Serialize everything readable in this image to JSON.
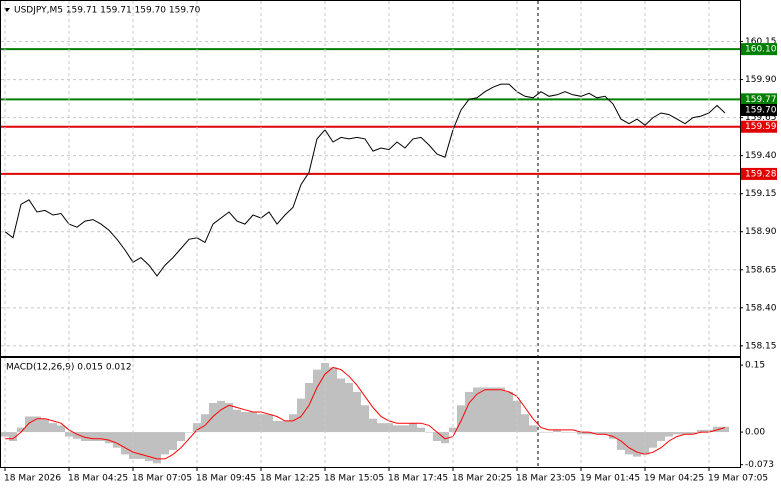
{
  "chart_data": [
    {
      "type": "line",
      "title": "USDJPY,M5  159.71 159.71 159.70 159.70",
      "color": "#000000",
      "ylim": [
        158.09,
        160.39
      ],
      "yticks": [
        160.15,
        {
          "value": 159.9,
          "label": "159.90"
        },
        159.65,
        {
          "value": 159.4,
          "label": "159.40"
        },
        159.15,
        {
          "value": 158.9,
          "label": "158.90"
        },
        158.65,
        {
          "value": 158.4,
          "label": "158.40"
        },
        158.15
      ],
      "grid": true,
      "levels": [
        {
          "value": 160.1,
          "label": "160.10",
          "color": "#008000"
        },
        {
          "value": 159.77,
          "label": "159.77",
          "color": "#008000"
        },
        {
          "value": 159.59,
          "label": "159.59",
          "color": "#e00000"
        },
        {
          "value": 159.28,
          "label": "159.28",
          "color": "#e00000"
        }
      ],
      "last_price": {
        "value": 159.7,
        "label": "159.70"
      },
      "values": [
        158.9,
        158.86,
        159.08,
        159.11,
        159.03,
        159.04,
        159.01,
        159.02,
        158.95,
        158.93,
        158.97,
        158.98,
        158.95,
        158.91,
        158.85,
        158.78,
        158.7,
        158.73,
        158.68,
        158.61,
        158.68,
        158.73,
        158.79,
        158.85,
        158.86,
        158.83,
        158.95,
        158.99,
        159.03,
        158.97,
        158.95,
        159.01,
        158.99,
        159.03,
        158.95,
        159.01,
        159.06,
        159.21,
        159.29,
        159.51,
        159.57,
        159.49,
        159.52,
        159.51,
        159.52,
        159.51,
        159.43,
        159.45,
        159.44,
        159.49,
        159.45,
        159.51,
        159.52,
        159.47,
        159.41,
        159.39,
        159.57,
        159.7,
        159.77,
        159.78,
        159.82,
        159.85,
        159.87,
        159.87,
        159.82,
        159.79,
        159.78,
        159.82,
        159.79,
        159.8,
        159.82,
        159.8,
        159.79,
        159.81,
        159.78,
        159.79,
        159.74,
        159.64,
        159.61,
        159.64,
        159.6,
        159.65,
        159.68,
        159.67,
        159.64,
        159.61,
        159.65,
        159.66,
        159.68,
        159.73,
        159.68
      ]
    },
    {
      "type": "bar",
      "title": "MACD(12,26,9) 0.015 0.012",
      "ylim": [
        -0.076,
        0.166
      ],
      "yticks": [
        0.15,
        {
          "value": 0,
          "label": "0.00"
        },
        -0.073
      ],
      "categories": [
        "18 Mar 2026",
        null,
        null,
        null,
        null,
        null,
        null,
        null,
        "18 Mar 04:25",
        null,
        null,
        null,
        null,
        null,
        null,
        null,
        "18 Mar 07:05",
        null,
        null,
        null,
        null,
        null,
        null,
        null,
        "18 Mar 09:45",
        null,
        null,
        null,
        null,
        null,
        null,
        null,
        "18 Mar 12:25",
        null,
        null,
        null,
        null,
        null,
        null,
        null,
        "18 Mar 15:05",
        null,
        null,
        null,
        null,
        null,
        null,
        null,
        "18 Mar 17:45",
        null,
        null,
        null,
        null,
        null,
        null,
        null,
        "18 Mar 20:25",
        null,
        null,
        null,
        null,
        null,
        null,
        null,
        "18 Mar 23:05",
        null,
        null,
        null,
        null,
        null,
        null,
        null,
        "19 Mar 01:45",
        null,
        null,
        null,
        null,
        null,
        null,
        null,
        "19 Mar 04:25",
        null,
        null,
        null,
        null,
        null,
        null,
        null,
        "19 Mar 07:05",
        null,
        null
      ],
      "histogram": {
        "color": "#c0c0c0",
        "values": [
          -0.01,
          -0.02,
          0.01,
          0.035,
          0.035,
          0.03,
          0.02,
          0.015,
          -0.01,
          -0.015,
          -0.02,
          -0.02,
          -0.02,
          -0.025,
          -0.035,
          -0.05,
          -0.06,
          -0.06,
          -0.065,
          -0.07,
          -0.05,
          -0.04,
          -0.02,
          0,
          0.02,
          0.04,
          0.065,
          0.07,
          0.065,
          0.05,
          0.045,
          0.045,
          0.04,
          0.04,
          0.025,
          0.025,
          0.04,
          0.075,
          0.11,
          0.14,
          0.155,
          0.145,
          0.12,
          0.11,
          0.09,
          0.06,
          0.03,
          0.02,
          0.02,
          0.015,
          0.015,
          0.02,
          0.01,
          0,
          -0.02,
          -0.025,
          0.01,
          0.06,
          0.09,
          0.1,
          0.1,
          0.1,
          0.1,
          0.09,
          0.07,
          0.04,
          0.015,
          0,
          0,
          0.005,
          0,
          0,
          -0.005,
          -0.005,
          -0.005,
          -0.005,
          -0.015,
          -0.04,
          -0.05,
          -0.055,
          -0.05,
          -0.035,
          -0.02,
          -0.01,
          -0.005,
          -0.005,
          -0.005,
          0.005,
          0.005,
          0.012,
          0.012
        ]
      },
      "signal": {
        "color": "#ff0000",
        "values": [
          -0.015,
          -0.015,
          0,
          0.02,
          0.03,
          0.03,
          0.025,
          0.02,
          0.005,
          -0.005,
          -0.012,
          -0.015,
          -0.015,
          -0.018,
          -0.025,
          -0.035,
          -0.045,
          -0.05,
          -0.055,
          -0.06,
          -0.06,
          -0.05,
          -0.035,
          -0.015,
          0.005,
          0.015,
          0.035,
          0.05,
          0.06,
          0.055,
          0.05,
          0.045,
          0.045,
          0.04,
          0.035,
          0.025,
          0.025,
          0.035,
          0.06,
          0.1,
          0.13,
          0.145,
          0.14,
          0.125,
          0.105,
          0.08,
          0.055,
          0.035,
          0.025,
          0.02,
          0.02,
          0.02,
          0.02,
          0.015,
          0,
          -0.015,
          -0.01,
          0.025,
          0.065,
          0.085,
          0.095,
          0.095,
          0.095,
          0.09,
          0.08,
          0.055,
          0.03,
          0.01,
          0.005,
          0.005,
          0.005,
          0.005,
          0,
          0,
          -0.005,
          -0.005,
          -0.01,
          -0.02,
          -0.035,
          -0.045,
          -0.05,
          -0.045,
          -0.035,
          -0.02,
          -0.01,
          -0.005,
          -0.005,
          0,
          0,
          0.005,
          0.01
        ]
      }
    }
  ]
}
